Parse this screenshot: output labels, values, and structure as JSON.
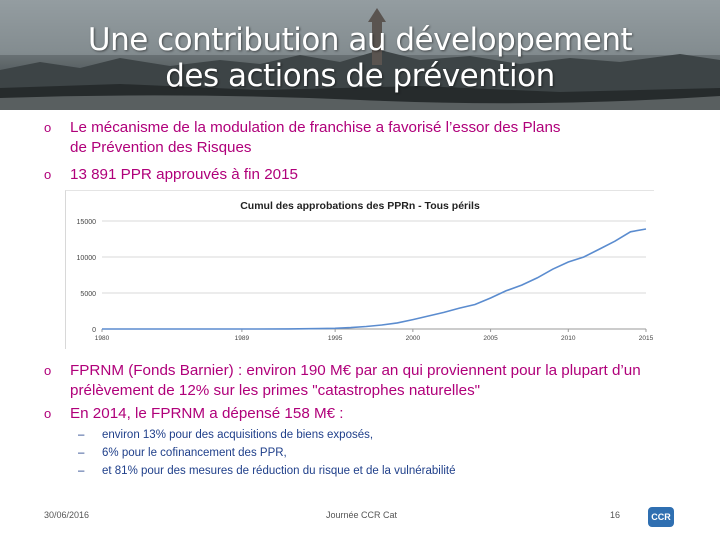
{
  "slide": {
    "title_line1": "Une contribution au développement",
    "title_line2": "des actions de prévention"
  },
  "bullets": [
    {
      "line1": "Le mécanisme de la modulation de franchise a favorisé l’essor des Plans",
      "line2": "de Prévention des Risques"
    },
    {
      "line1": "13 891 PPR approuvés à fin 2015"
    },
    {
      "line1": "FPRNM (Fonds Barnier) : environ 190 M€ par an qui proviennent pour la plupart d’un",
      "line2": "prélèvement de 12% sur les primes \"catastrophes naturelles\""
    },
    {
      "line1": "En 2014, le FPRNM a dépensé 158 M€ :"
    }
  ],
  "sub_bullets": [
    "environ 13% pour des acquisitions de biens exposés,",
    "6% pour le cofinancement des PPR,",
    "et 81% pour des mesures de réduction du risque et de la vulnérabilité"
  ],
  "markers": {
    "bullet": "o",
    "sub": "–"
  },
  "chart_data": {
    "type": "line",
    "title": "Cumul des approbations des PPRn - Tous périls",
    "xlabel": "",
    "ylabel": "",
    "x": [
      1980,
      1982,
      1984,
      1986,
      1988,
      1990,
      1992,
      1994,
      1995,
      1996,
      1997,
      1998,
      1999,
      2000,
      2001,
      2002,
      2003,
      2004,
      2005,
      2006,
      2007,
      2008,
      2009,
      2010,
      2011,
      2012,
      2013,
      2014,
      2015
    ],
    "y": [
      0,
      0,
      0,
      0,
      0,
      0,
      20,
      60,
      100,
      200,
      350,
      550,
      850,
      1300,
      1800,
      2300,
      2900,
      3400,
      4300,
      5300,
      6100,
      7100,
      8300,
      9300,
      10000,
      11100,
      12200,
      13500,
      13891
    ],
    "xlim": [
      1980,
      2015
    ],
    "ylim": [
      0,
      15000
    ],
    "yticks": [
      "0",
      "5000",
      "10000",
      "15000"
    ],
    "xticks": [
      {
        "v": 1980,
        "label": "1980"
      },
      {
        "v": 1989,
        "label": "1989"
      },
      {
        "v": 1995,
        "label": "1995"
      },
      {
        "v": 2000,
        "label": "2000"
      },
      {
        "v": 2005,
        "label": "2005"
      },
      {
        "v": 2010,
        "label": "2010"
      },
      {
        "v": 2015,
        "label": "2015"
      }
    ],
    "grid": true,
    "color": "#5b8ccf"
  },
  "footer": {
    "date": "30/06/2016",
    "event": "Journée CCR Cat",
    "page": "16",
    "logo_text": "CCR"
  }
}
